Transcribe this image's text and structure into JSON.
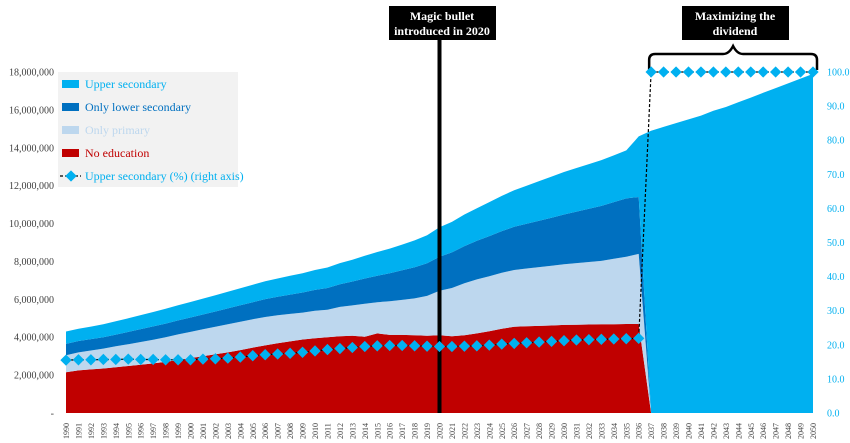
{
  "chart_data": {
    "type": "area",
    "title": "",
    "xlabel": "",
    "ylabel": "",
    "x": [
      1990,
      1991,
      1992,
      1993,
      1994,
      1995,
      1996,
      1997,
      1998,
      1999,
      2000,
      2001,
      2002,
      2003,
      2004,
      2005,
      2006,
      2007,
      2008,
      2009,
      2010,
      2011,
      2012,
      2013,
      2014,
      2015,
      2016,
      2017,
      2018,
      2019,
      2020,
      2021,
      2022,
      2023,
      2024,
      2025,
      2026,
      2027,
      2028,
      2029,
      2030,
      2031,
      2032,
      2033,
      2034,
      2035,
      2036,
      2037,
      2038,
      2039,
      2040,
      2041,
      2042,
      2043,
      2044,
      2045,
      2046,
      2047,
      2048,
      2049,
      2050
    ],
    "ylim": [
      0,
      18000000
    ],
    "y_ticks": [
      "-",
      "2,000,000",
      "4,000,000",
      "6,000,000",
      "8,000,000",
      "10,000,000",
      "12,000,000",
      "14,000,000",
      "16,000,000",
      "18,000,000"
    ],
    "y2lim": [
      0,
      100
    ],
    "y2_ticks": [
      "0.0",
      "10.0",
      "20.0",
      "30.0",
      "40.0",
      "50.0",
      "60.0",
      "70.0",
      "80.0",
      "90.0",
      "100.0"
    ],
    "stacked": true,
    "series": [
      {
        "name": "No education",
        "color": "#c00000",
        "values": [
          2150000,
          2250000,
          2300000,
          2350000,
          2420000,
          2480000,
          2550000,
          2620000,
          2700000,
          2800000,
          2900000,
          3000000,
          3100000,
          3200000,
          3320000,
          3450000,
          3570000,
          3680000,
          3780000,
          3880000,
          3950000,
          4000000,
          4050000,
          4080000,
          4020000,
          4200000,
          4120000,
          4120000,
          4100000,
          4080000,
          4100000,
          4050000,
          4100000,
          4200000,
          4320000,
          4450000,
          4550000,
          4580000,
          4600000,
          4620000,
          4650000,
          4660000,
          4670000,
          4680000,
          4690000,
          4700000,
          4700000,
          0,
          0,
          0,
          0,
          0,
          0,
          0,
          0,
          0,
          0,
          0,
          0,
          0,
          0
        ]
      },
      {
        "name": "Only primary",
        "color": "#bdd7ee",
        "values": [
          900000,
          950000,
          1000000,
          1050000,
          1100000,
          1150000,
          1200000,
          1250000,
          1300000,
          1350000,
          1380000,
          1420000,
          1450000,
          1480000,
          1500000,
          1500000,
          1500000,
          1480000,
          1450000,
          1420000,
          1450000,
          1450000,
          1550000,
          1600000,
          1750000,
          1650000,
          1780000,
          1850000,
          1950000,
          2100000,
          2350000,
          2550000,
          2750000,
          2850000,
          2900000,
          2950000,
          3000000,
          3050000,
          3100000,
          3150000,
          3200000,
          3250000,
          3300000,
          3350000,
          3450000,
          3550000,
          3700000,
          0,
          0,
          0,
          0,
          0,
          0,
          0,
          0,
          0,
          0,
          0,
          0,
          0,
          0
        ]
      },
      {
        "name": "Only lower secondary",
        "color": "#0070c0",
        "values": [
          600000,
          600000,
          600000,
          600000,
          620000,
          650000,
          680000,
          700000,
          720000,
          740000,
          760000,
          780000,
          810000,
          840000,
          870000,
          900000,
          940000,
          980000,
          1020000,
          1060000,
          1100000,
          1150000,
          1200000,
          1260000,
          1330000,
          1400000,
          1480000,
          1560000,
          1640000,
          1720000,
          1800000,
          1880000,
          1960000,
          2040000,
          2120000,
          2200000,
          2280000,
          2360000,
          2450000,
          2540000,
          2630000,
          2720000,
          2810000,
          2900000,
          2990000,
          3080000,
          3000000,
          0,
          0,
          0,
          0,
          0,
          0,
          0,
          0,
          0,
          0,
          0,
          0,
          0,
          0
        ]
      },
      {
        "name": "Upper secondary",
        "color": "#00b0f0",
        "values": [
          650000,
          650000,
          660000,
          680000,
          700000,
          720000,
          740000,
          760000,
          780000,
          800000,
          820000,
          840000,
          860000,
          880000,
          900000,
          920000,
          940000,
          960000,
          990000,
          1020000,
          1050000,
          1080000,
          1110000,
          1150000,
          1200000,
          1250000,
          1300000,
          1360000,
          1420000,
          1480000,
          1550000,
          1610000,
          1670000,
          1720000,
          1790000,
          1860000,
          1930000,
          2010000,
          2090000,
          2170000,
          2240000,
          2300000,
          2360000,
          2420000,
          2470000,
          2530000,
          3200000,
          14900000,
          15100000,
          15300000,
          15500000,
          15700000,
          15950000,
          16150000,
          16400000,
          16650000,
          16900000,
          17150000,
          17400000,
          17650000,
          17900000
        ]
      }
    ],
    "line_series": {
      "name": "Upper secondary (%) (right axis)",
      "axis": "right",
      "color": "#00b0f0",
      "values": [
        15.5,
        15.6,
        15.6,
        15.7,
        15.7,
        15.8,
        15.7,
        15.7,
        15.6,
        15.6,
        15.6,
        15.8,
        15.9,
        16.1,
        16.4,
        16.8,
        17.1,
        17.3,
        17.5,
        17.8,
        18.2,
        18.6,
        18.9,
        19.2,
        19.5,
        19.7,
        19.8,
        19.8,
        19.7,
        19.6,
        19.5,
        19.5,
        19.6,
        19.7,
        19.9,
        20.2,
        20.4,
        20.6,
        20.8,
        21.0,
        21.2,
        21.4,
        21.5,
        21.6,
        21.7,
        21.8,
        21.9,
        100,
        100,
        100,
        100,
        100,
        100,
        100,
        100,
        100,
        100,
        100,
        100,
        100,
        100
      ]
    },
    "annotations": [
      {
        "label_line1": "Magic bullet",
        "label_line2": "introduced in 2020",
        "year": 2020
      },
      {
        "label_line1": "Maximizing the",
        "label_line2": "dividend",
        "from_year": 2037,
        "to_year": 2050
      }
    ],
    "legend_position": "top-left",
    "grid": false,
    "legend": [
      {
        "label": "Upper secondary",
        "color": "#00b0f0",
        "kind": "patch",
        "text_color": "#00b0f0"
      },
      {
        "label": "Only lower secondary",
        "color": "#0070c0",
        "kind": "patch",
        "text_color": "#0070c0"
      },
      {
        "label": "Only primary",
        "color": "#bdd7ee",
        "kind": "patch",
        "text_color": "#bdd7ee"
      },
      {
        "label": "No education",
        "color": "#c00000",
        "kind": "patch",
        "text_color": "#c00000"
      },
      {
        "label": "Upper secondary (%) (right axis)",
        "color": "#00b0f0",
        "kind": "line",
        "text_color": "#00b0f0"
      }
    ]
  }
}
